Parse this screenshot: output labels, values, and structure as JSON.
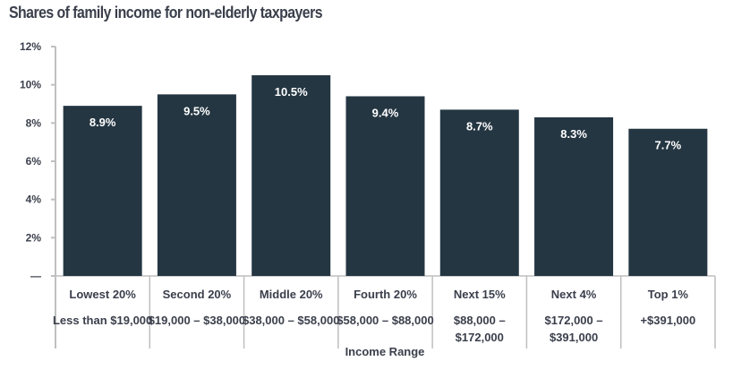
{
  "chart_data": {
    "type": "bar",
    "title": "Shares of family income for non-elderly taxpayers",
    "xlabel": "Income Range",
    "ylabel": "",
    "ylim": [
      0,
      12
    ],
    "yticks": [
      0,
      2,
      4,
      6,
      8,
      10,
      12
    ],
    "ytick_labels": [
      "—",
      "2%",
      "4%",
      "6%",
      "8%",
      "10%",
      "12%"
    ],
    "grid": false,
    "categories": [
      "Lowest 20%",
      "Second 20%",
      "Middle 20%",
      "Fourth 20%",
      "Next 15%",
      "Next 4%",
      "Top 1%"
    ],
    "income_ranges": [
      [
        "Less than $19,000"
      ],
      [
        "$19,000 – $38,000"
      ],
      [
        "$38,000 – $58,000"
      ],
      [
        "$58,000 – $88,000"
      ],
      [
        "$88,000 –",
        "$172,000"
      ],
      [
        "$172,000 –",
        "$391,000"
      ],
      [
        "+$391,000"
      ]
    ],
    "values": [
      8.9,
      9.5,
      10.5,
      9.4,
      8.7,
      8.3,
      7.7
    ],
    "data_labels": [
      "8.9%",
      "9.5%",
      "10.5%",
      "9.4%",
      "8.7%",
      "8.3%",
      "7.7%"
    ],
    "colors": {
      "bar": "#243642",
      "axis": "#bfbfbf",
      "text": "#3a3f4b",
      "label": "#ffffff"
    }
  }
}
